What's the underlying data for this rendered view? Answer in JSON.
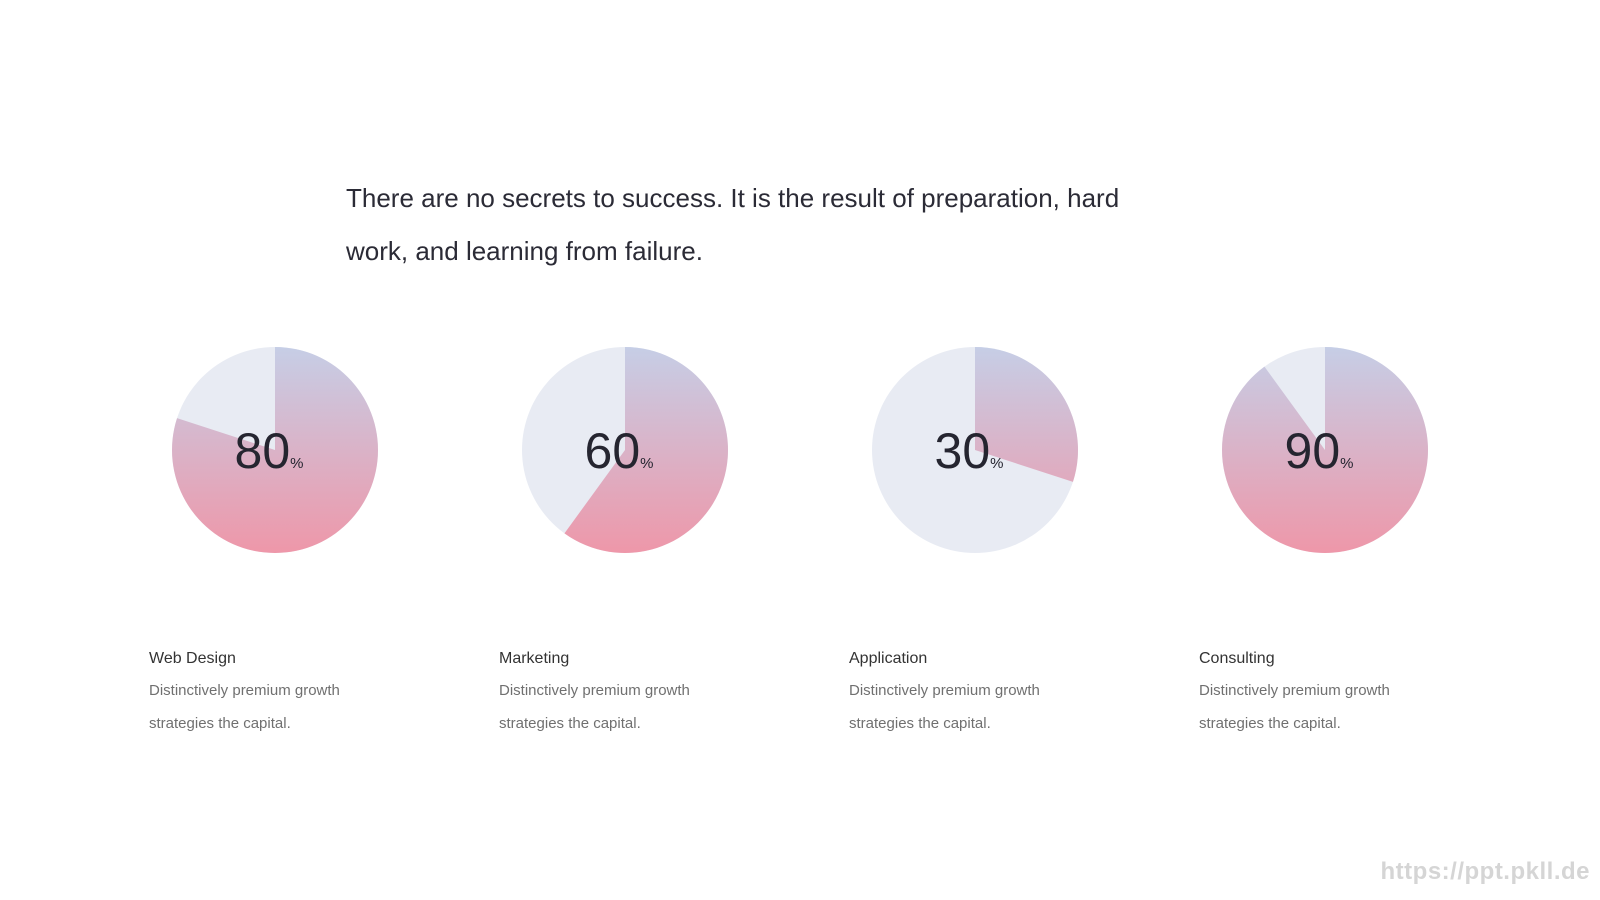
{
  "heading": "There are no secrets to success. It is the result of preparation, hard work, and learning from failure.",
  "watermark": "https://ppt.pkll.de",
  "chart_data": [
    {
      "type": "pie",
      "title": "Web Design",
      "subtitle": "Distinctively premium growth strategies the capital.",
      "values": [
        80
      ],
      "unit": "%",
      "gradient": [
        "#c6cee6",
        "#ee97a9"
      ],
      "track_color": "#e8ebf3"
    },
    {
      "type": "pie",
      "title": "Marketing",
      "subtitle": "Distinctively premium growth strategies the capital.",
      "values": [
        60
      ],
      "unit": "%",
      "gradient": [
        "#c6cee6",
        "#ee97a9"
      ],
      "track_color": "#e8ebf3"
    },
    {
      "type": "pie",
      "title": "Application",
      "subtitle": "Distinctively premium growth strategies the capital.",
      "values": [
        30
      ],
      "unit": "%",
      "gradient": [
        "#c6cee6",
        "#ee97a9"
      ],
      "track_color": "#e8ebf3"
    },
    {
      "type": "pie",
      "title": "Consulting",
      "subtitle": "Distinctively premium growth strategies the capital.",
      "values": [
        90
      ],
      "unit": "%",
      "gradient": [
        "#c6cee6",
        "#ee97a9"
      ],
      "track_color": "#e8ebf3"
    }
  ]
}
